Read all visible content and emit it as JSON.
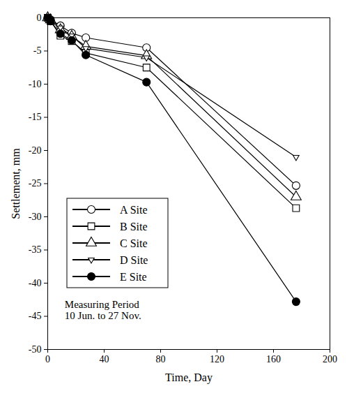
{
  "chart_data": {
    "type": "line",
    "x_label": "Time, Day",
    "y_label": "Settlement, mm",
    "annotation": "Measuring Period\n10 Jun. to 27 Nov.",
    "xlim": [
      0,
      200
    ],
    "xticks": [
      0,
      40,
      80,
      120,
      160,
      200
    ],
    "ylim": [
      -50,
      0
    ],
    "yticks": [
      -50,
      -45,
      -40,
      -35,
      -30,
      -25,
      -20,
      -15,
      -10,
      -5,
      0
    ],
    "grid": false,
    "legend": "left",
    "x": [
      0,
      2,
      9,
      17,
      27,
      70,
      176
    ],
    "series": [
      {
        "name": "A Site",
        "color": "#000000",
        "marker": "circle-open",
        "values": [
          0,
          -0.3,
          -1.2,
          -2.3,
          -3.0,
          -4.5,
          -25.3
        ]
      },
      {
        "name": "B Site",
        "color": "#000000",
        "marker": "square-open",
        "values": [
          0,
          -0.5,
          -2.7,
          -3.5,
          -5.3,
          -7.5,
          -28.7
        ]
      },
      {
        "name": "C Site",
        "color": "#000000",
        "marker": "triangle-open",
        "values": [
          0,
          -0.3,
          -1.8,
          -2.8,
          -4.3,
          -5.7,
          -27.0
        ]
      },
      {
        "name": "D Site",
        "color": "#000000",
        "marker": "triangledown-open",
        "values": [
          0,
          -0.2,
          -1.5,
          -2.7,
          -4.6,
          -6.0,
          -21.0
        ]
      },
      {
        "name": "E Site",
        "color": "#000000",
        "marker": "circle-filled",
        "values": [
          0,
          -0.5,
          -2.4,
          -3.4,
          -5.6,
          -9.7,
          -42.8
        ]
      }
    ]
  }
}
